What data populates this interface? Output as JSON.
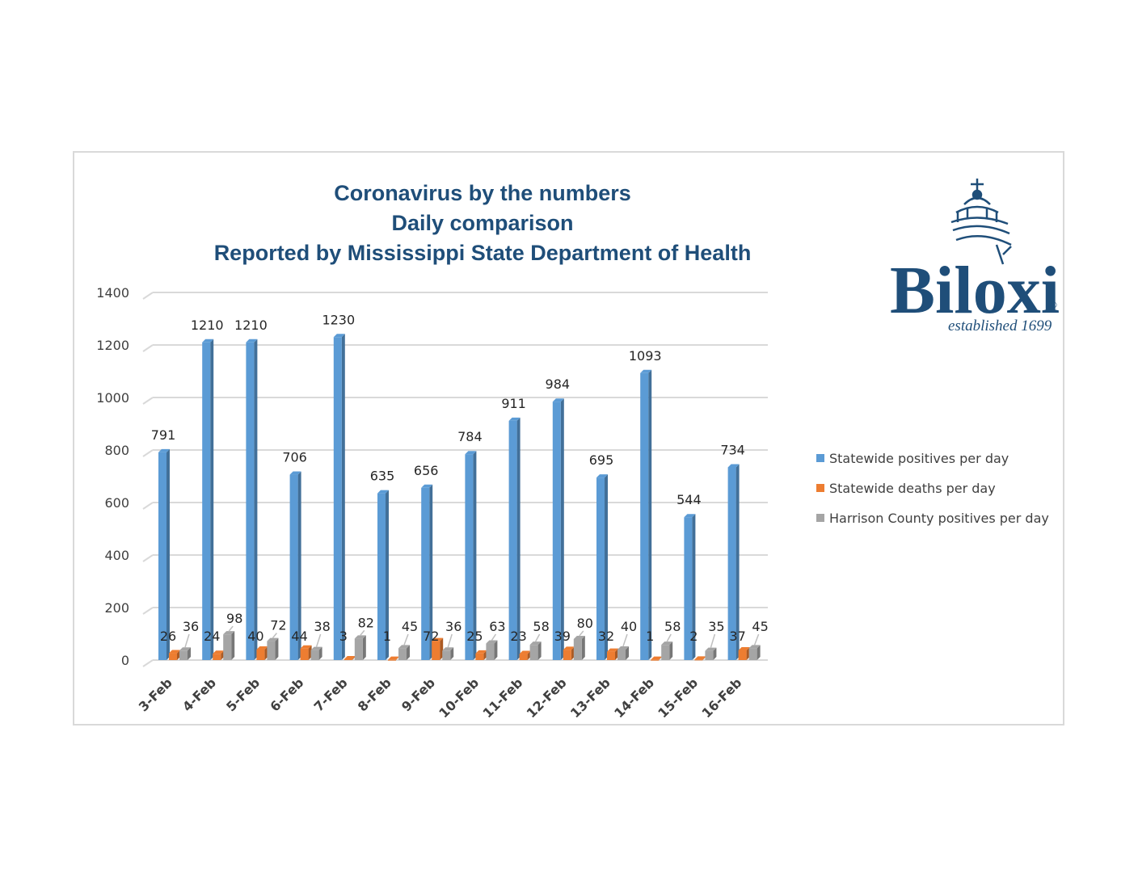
{
  "chart_data": {
    "type": "bar",
    "title_lines": [
      "Coronavirus by the numbers",
      "Daily comparison",
      "Reported by Mississippi State Department of Health"
    ],
    "categories": [
      "3-Feb",
      "4-Feb",
      "5-Feb",
      "6-Feb",
      "7-Feb",
      "8-Feb",
      "9-Feb",
      "10-Feb",
      "11-Feb",
      "12-Feb",
      "13-Feb",
      "14-Feb",
      "15-Feb",
      "16-Feb"
    ],
    "series": [
      {
        "name": "Statewide positives per day",
        "color": "#5b9bd5",
        "values": [
          791,
          1210,
          1210,
          706,
          1230,
          635,
          656,
          784,
          911,
          984,
          695,
          1093,
          544,
          734
        ]
      },
      {
        "name": "Statewide deaths per day",
        "color": "#ed7d31",
        "values": [
          26,
          24,
          40,
          44,
          3,
          1,
          72,
          25,
          23,
          39,
          32,
          1,
          2,
          37
        ]
      },
      {
        "name": "Harrison County positives per day",
        "color": "#a5a5a5",
        "values": [
          36,
          98,
          72,
          38,
          82,
          45,
          36,
          63,
          58,
          80,
          40,
          58,
          35,
          45
        ]
      }
    ],
    "ylim": [
      0,
      1400
    ],
    "yticks": [
      0,
      200,
      400,
      600,
      800,
      1000,
      1200,
      1400
    ],
    "legend_position": "right",
    "grid": true
  },
  "logo": {
    "word": "Biloxi",
    "tagline": "established 1699",
    "mark": "®",
    "color": "#1f4e79"
  }
}
